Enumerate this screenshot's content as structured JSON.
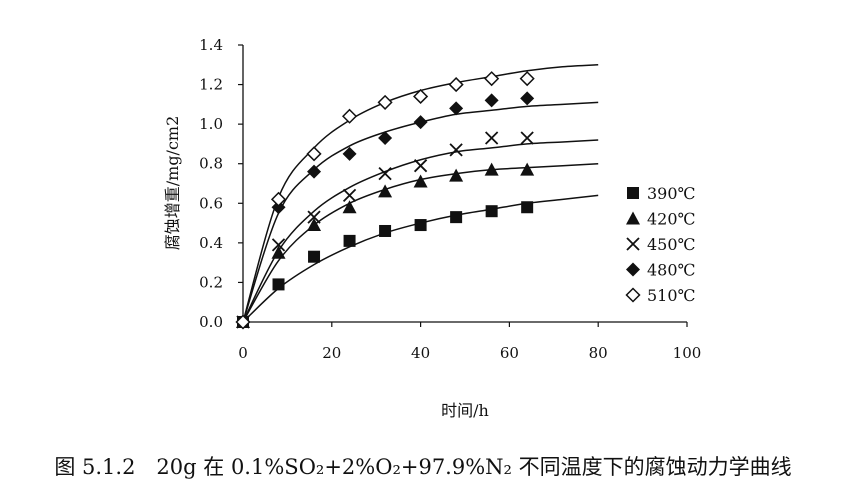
{
  "chart_data": {
    "type": "scatter",
    "xlabel": "时间/h",
    "ylabel": "腐蚀增重/mg/cm2",
    "xlim": [
      0,
      100
    ],
    "ylim": [
      0,
      1.4
    ],
    "x_ticks": [
      "0",
      "20",
      "40",
      "60",
      "80",
      "100"
    ],
    "y_ticks": [
      "0.0",
      "0.2",
      "0.4",
      "0.6",
      "0.8",
      "1.0",
      "1.2",
      "1.4"
    ],
    "grid": false,
    "legend_position": "right",
    "series": [
      {
        "name": "390℃",
        "marker": "filled-square",
        "x": [
          0,
          8,
          16,
          24,
          32,
          40,
          48,
          56,
          64
        ],
        "y": [
          0.0,
          0.19,
          0.33,
          0.41,
          0.46,
          0.49,
          0.53,
          0.56,
          0.58
        ],
        "fit_curve": {
          "x": [
            0,
            8,
            16,
            24,
            32,
            40,
            48,
            56,
            64,
            72,
            80
          ],
          "y": [
            0.0,
            0.17,
            0.29,
            0.38,
            0.45,
            0.5,
            0.54,
            0.57,
            0.6,
            0.62,
            0.64
          ]
        }
      },
      {
        "name": "420℃",
        "marker": "filled-triangle",
        "x": [
          0,
          8,
          16,
          24,
          32,
          40,
          48,
          56,
          64
        ],
        "y": [
          0.0,
          0.35,
          0.49,
          0.58,
          0.66,
          0.71,
          0.74,
          0.77,
          0.77
        ],
        "fit_curve": {
          "x": [
            0,
            8,
            16,
            24,
            32,
            40,
            48,
            56,
            64,
            72,
            80
          ],
          "y": [
            0.0,
            0.31,
            0.49,
            0.6,
            0.67,
            0.72,
            0.75,
            0.77,
            0.78,
            0.79,
            0.8
          ]
        }
      },
      {
        "name": "450℃",
        "marker": "cross",
        "x": [
          0,
          8,
          16,
          24,
          32,
          40,
          48,
          56,
          64
        ],
        "y": [
          0.0,
          0.39,
          0.53,
          0.64,
          0.75,
          0.79,
          0.87,
          0.93,
          0.93
        ],
        "fit_curve": {
          "x": [
            0,
            8,
            16,
            24,
            32,
            40,
            48,
            56,
            64,
            72,
            80
          ],
          "y": [
            0.0,
            0.36,
            0.56,
            0.68,
            0.76,
            0.82,
            0.86,
            0.88,
            0.9,
            0.91,
            0.92
          ]
        }
      },
      {
        "name": "480℃",
        "marker": "filled-diamond",
        "x": [
          0,
          8,
          16,
          24,
          32,
          40,
          48,
          56,
          64
        ],
        "y": [
          0.0,
          0.58,
          0.76,
          0.85,
          0.93,
          1.01,
          1.08,
          1.12,
          1.13
        ],
        "fit_curve": {
          "x": [
            0,
            8,
            16,
            24,
            32,
            40,
            48,
            56,
            64,
            72,
            80
          ],
          "y": [
            0.0,
            0.55,
            0.77,
            0.89,
            0.96,
            1.01,
            1.05,
            1.07,
            1.09,
            1.1,
            1.11
          ]
        }
      },
      {
        "name": "510℃",
        "marker": "open-diamond",
        "x": [
          0,
          8,
          16,
          24,
          32,
          40,
          48,
          56,
          64
        ],
        "y": [
          0.0,
          0.62,
          0.85,
          1.04,
          1.11,
          1.14,
          1.2,
          1.23,
          1.23
        ],
        "fit_curve": {
          "x": [
            0,
            8,
            16,
            24,
            32,
            40,
            48,
            56,
            64,
            72,
            80
          ],
          "y": [
            0.0,
            0.63,
            0.88,
            1.02,
            1.11,
            1.17,
            1.21,
            1.24,
            1.27,
            1.29,
            1.3
          ]
        }
      }
    ]
  },
  "caption": {
    "text": "图 5.1.2　20g 在 0.1%SO₂+2%O₂+97.9%N₂ 不同温度下的腐蚀动力学曲线"
  },
  "colors": {
    "ink": "#111111",
    "background": "#ffffff"
  }
}
